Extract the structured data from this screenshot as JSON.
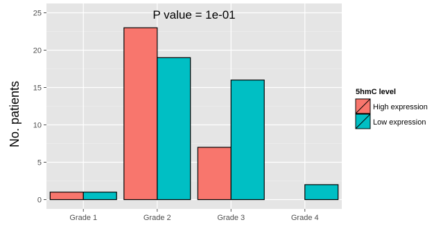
{
  "chart_data": {
    "type": "bar",
    "title": "",
    "annotation": "P value = 1e-01",
    "xlabel": "",
    "ylabel": "No. patients",
    "categories": [
      "Grade 1",
      "Grade 2",
      "Grade 3",
      "Grade 4"
    ],
    "series": [
      {
        "name": "High expression",
        "color": "#F8766D",
        "values": [
          1,
          23,
          7,
          0
        ]
      },
      {
        "name": "Low expression",
        "color": "#00BFC4",
        "values": [
          1,
          19,
          16,
          2
        ]
      }
    ],
    "ylim": [
      -1.25,
      26.25
    ],
    "yticks": [
      0,
      5,
      10,
      15,
      20,
      25
    ],
    "grid": true,
    "background": "#E5E5E5",
    "legend": {
      "title": "5hmC level",
      "position": "right"
    }
  }
}
